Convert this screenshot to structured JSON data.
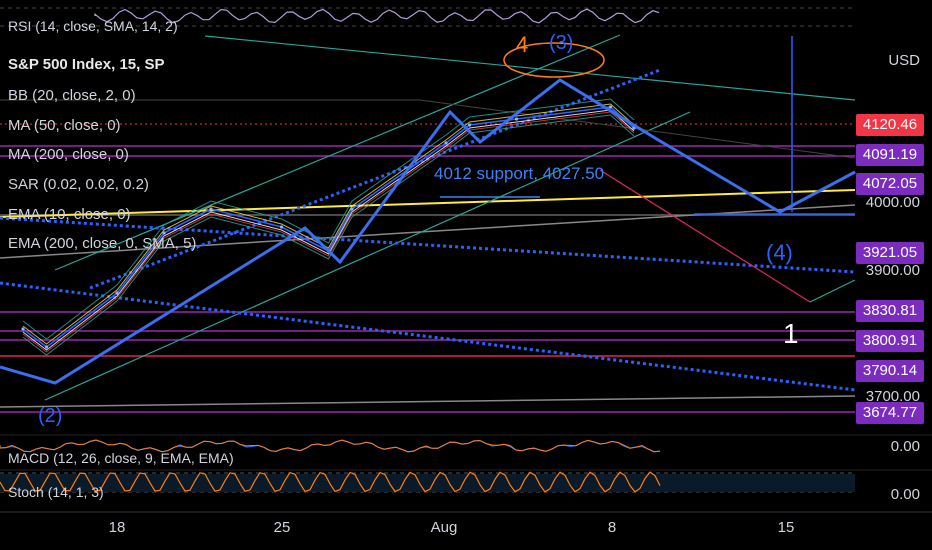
{
  "chart_data": {
    "type": "line",
    "symbol": "S&P 500 Index, 15, SP",
    "currency": "USD",
    "indicators": [
      "BB (20, close, 2, 0)",
      "MA (50, close, 0)",
      "MA (200, close, 0)",
      "SAR (0.02, 0.02, 0.2)",
      "EMA (10, close, 0)",
      "EMA (200, close, 0, SMA, 5)"
    ],
    "pane_labels": {
      "rsi": "RSI (14, close, SMA, 14, 2)",
      "macd": "MACD (12, 26, close, 9, EMA, EMA)",
      "stoch": "Stoch (14, 1, 3)"
    },
    "pane_values": {
      "macd": "0.00",
      "stoch": "0.00"
    },
    "price_axis_ticks": [
      "4000.00",
      "3900.00",
      "3700.00"
    ],
    "price_badges": [
      {
        "value": "4120.46",
        "color": "#f23645"
      },
      {
        "value": "4091.19",
        "color": "#7b2cbf"
      },
      {
        "value": "4072.05",
        "color": "#7b2cbf"
      },
      {
        "value": "3921.05",
        "color": "#7b2cbf"
      },
      {
        "value": "3830.81",
        "color": "#7b2cbf"
      },
      {
        "value": "3800.91",
        "color": "#7b2cbf"
      },
      {
        "value": "3790.14",
        "color": "#7b2cbf"
      },
      {
        "value": "3674.77",
        "color": "#7b2cbf"
      }
    ],
    "x_ticks": [
      "18",
      "25",
      "Aug",
      "8",
      "15"
    ],
    "annotations": {
      "wave_2": "(2)",
      "wave_3": "(3)",
      "wave_4_orange": "4",
      "wave_4_blue": "(4)",
      "wave_1": "1",
      "support_text": "4012 support, 4027.50"
    },
    "price_path": [
      [
        "Jul 14",
        3790
      ],
      [
        "Jul 15",
        3760
      ],
      [
        "Jul 18",
        3850
      ],
      [
        "Jul 20",
        3950
      ],
      [
        "Jul 22",
        3990
      ],
      [
        "Jul 25",
        3960
      ],
      [
        "Jul 27",
        3920
      ],
      [
        "Jul 28",
        3990
      ],
      [
        "Aug 1",
        4100
      ],
      [
        "Aug 2",
        4130
      ],
      [
        "Aug 4",
        4140
      ],
      [
        "Aug 8",
        4160
      ],
      [
        "Aug 9",
        4125
      ]
    ],
    "colors": {
      "price": "#2962ff",
      "elliott": "#3b6ff0",
      "support": "#ffeb3b",
      "bb": "#26a69a",
      "ma50": "#f7d046",
      "ma200": "#e53935",
      "oscillator": "#ff7f0e",
      "level": "#9c27b0"
    }
  }
}
